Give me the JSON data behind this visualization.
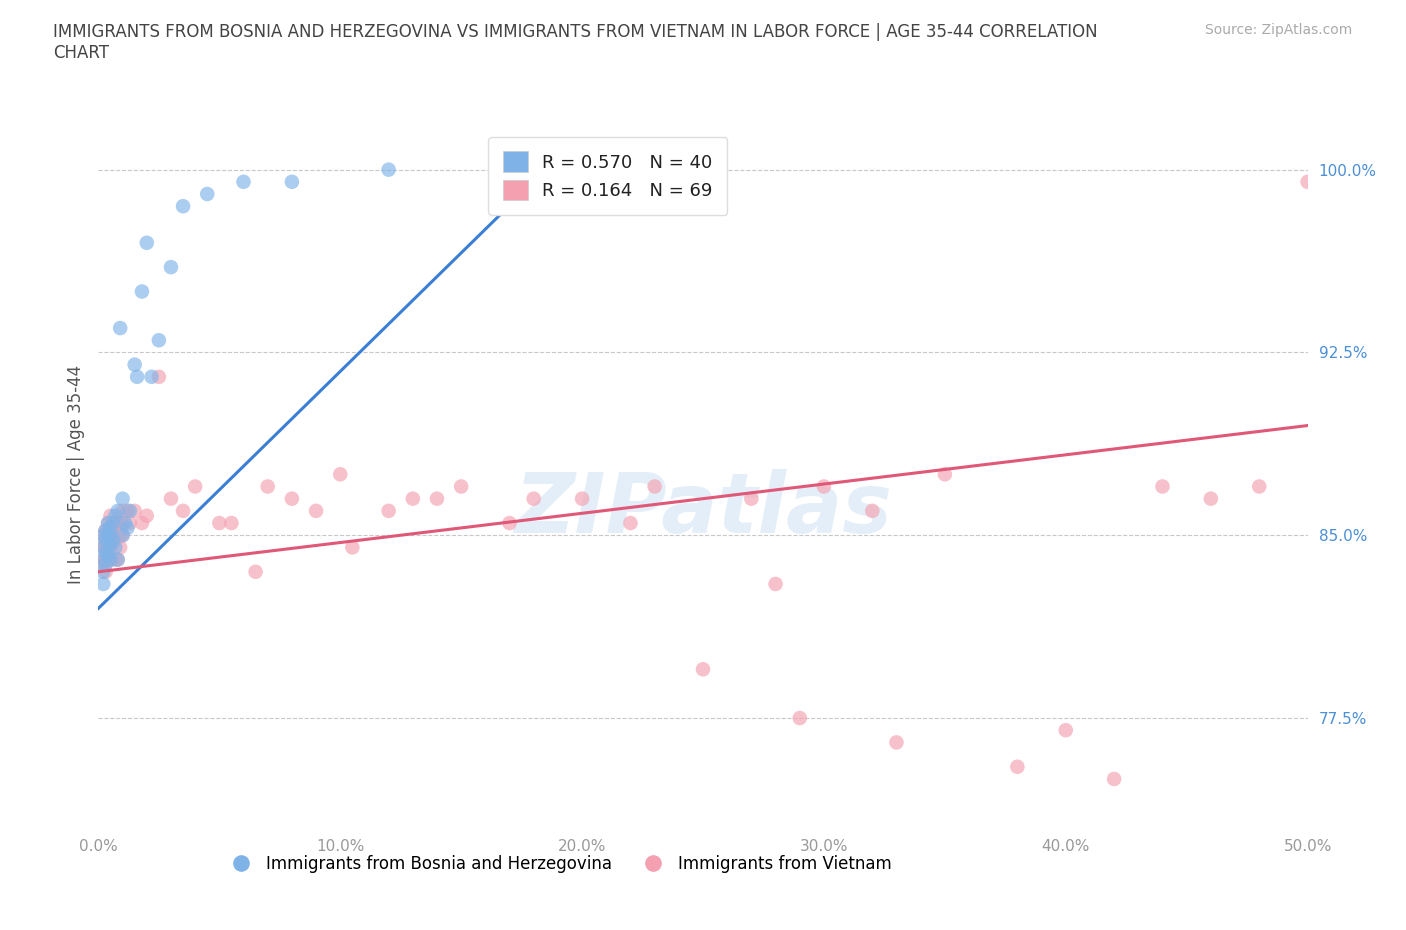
{
  "title": "IMMIGRANTS FROM BOSNIA AND HERZEGOVINA VS IMMIGRANTS FROM VIETNAM IN LABOR FORCE | AGE 35-44 CORRELATION\nCHART",
  "source": "Source: ZipAtlas.com",
  "xlabel": "",
  "ylabel": "In Labor Force | Age 35-44",
  "xlim": [
    0.0,
    50.0
  ],
  "ylim": [
    73.0,
    102.0
  ],
  "yticks": [
    77.5,
    85.0,
    92.5,
    100.0
  ],
  "xticks": [
    0.0,
    10.0,
    20.0,
    30.0,
    40.0,
    50.0
  ],
  "ytick_labels": [
    "77.5%",
    "85.0%",
    "92.5%",
    "100.0%"
  ],
  "bosnia_color": "#7fb3e8",
  "vietnam_color": "#f4a0b0",
  "bosnia_line_color": "#3b7fd4",
  "vietnam_line_color": "#e05878",
  "R_bosnia": 0.57,
  "N_bosnia": 40,
  "R_vietnam": 0.164,
  "N_vietnam": 69,
  "background_color": "#ffffff",
  "grid_color": "#c8c8c8",
  "watermark": "ZIPatlas",
  "bosnia_line_x0": 0.0,
  "bosnia_line_y0": 82.0,
  "bosnia_line_x1": 18.0,
  "bosnia_line_y1": 99.5,
  "vietnam_line_x0": 0.0,
  "vietnam_line_y0": 83.5,
  "vietnam_line_x1": 50.0,
  "vietnam_line_y1": 89.5,
  "bosnia_x": [
    0.2,
    0.2,
    0.2,
    0.2,
    0.2,
    0.3,
    0.3,
    0.3,
    0.3,
    0.4,
    0.4,
    0.4,
    0.5,
    0.5,
    0.5,
    0.5,
    0.6,
    0.6,
    0.7,
    0.7,
    0.8,
    0.8,
    0.9,
    1.0,
    1.0,
    1.1,
    1.2,
    1.3,
    1.5,
    1.6,
    1.8,
    2.0,
    2.2,
    2.5,
    3.0,
    3.5,
    4.5,
    6.0,
    8.0,
    12.0
  ],
  "bosnia_y": [
    85.0,
    84.5,
    84.0,
    83.5,
    83.0,
    85.2,
    84.8,
    84.3,
    83.8,
    85.5,
    85.0,
    84.2,
    85.3,
    85.0,
    84.6,
    84.0,
    85.5,
    84.8,
    85.8,
    84.5,
    86.0,
    84.0,
    93.5,
    86.5,
    85.0,
    85.5,
    85.3,
    86.0,
    92.0,
    91.5,
    95.0,
    97.0,
    91.5,
    93.0,
    96.0,
    98.5,
    99.0,
    99.5,
    99.5,
    100.0
  ],
  "vietnam_x": [
    0.2,
    0.2,
    0.2,
    0.2,
    0.3,
    0.3,
    0.3,
    0.3,
    0.3,
    0.4,
    0.4,
    0.4,
    0.5,
    0.5,
    0.5,
    0.5,
    0.5,
    0.6,
    0.7,
    0.7,
    0.7,
    0.8,
    0.8,
    0.9,
    0.9,
    1.0,
    1.0,
    1.0,
    1.2,
    1.3,
    1.5,
    1.8,
    2.0,
    2.5,
    3.0,
    3.5,
    4.0,
    5.0,
    5.5,
    6.5,
    7.0,
    8.0,
    9.0,
    10.0,
    10.5,
    12.0,
    13.0,
    14.0,
    15.0,
    17.0,
    18.0,
    20.0,
    22.0,
    23.0,
    25.0,
    27.0,
    28.0,
    29.0,
    30.0,
    32.0,
    33.0,
    35.0,
    38.0,
    40.0,
    42.0,
    44.0,
    46.0,
    48.0,
    50.0
  ],
  "vietnam_y": [
    85.0,
    84.5,
    84.0,
    83.8,
    85.2,
    84.8,
    84.5,
    84.0,
    83.5,
    85.5,
    85.0,
    84.0,
    85.8,
    85.3,
    85.0,
    84.5,
    84.0,
    85.0,
    85.5,
    84.8,
    84.0,
    85.5,
    84.0,
    85.0,
    84.5,
    86.0,
    85.5,
    85.0,
    86.0,
    85.5,
    86.0,
    85.5,
    85.8,
    91.5,
    86.5,
    86.0,
    87.0,
    85.5,
    85.5,
    83.5,
    87.0,
    86.5,
    86.0,
    87.5,
    84.5,
    86.0,
    86.5,
    86.5,
    87.0,
    85.5,
    86.5,
    86.5,
    85.5,
    87.0,
    79.5,
    86.5,
    83.0,
    77.5,
    87.0,
    86.0,
    76.5,
    87.5,
    75.5,
    77.0,
    75.0,
    87.0,
    86.5,
    87.0,
    99.5
  ]
}
